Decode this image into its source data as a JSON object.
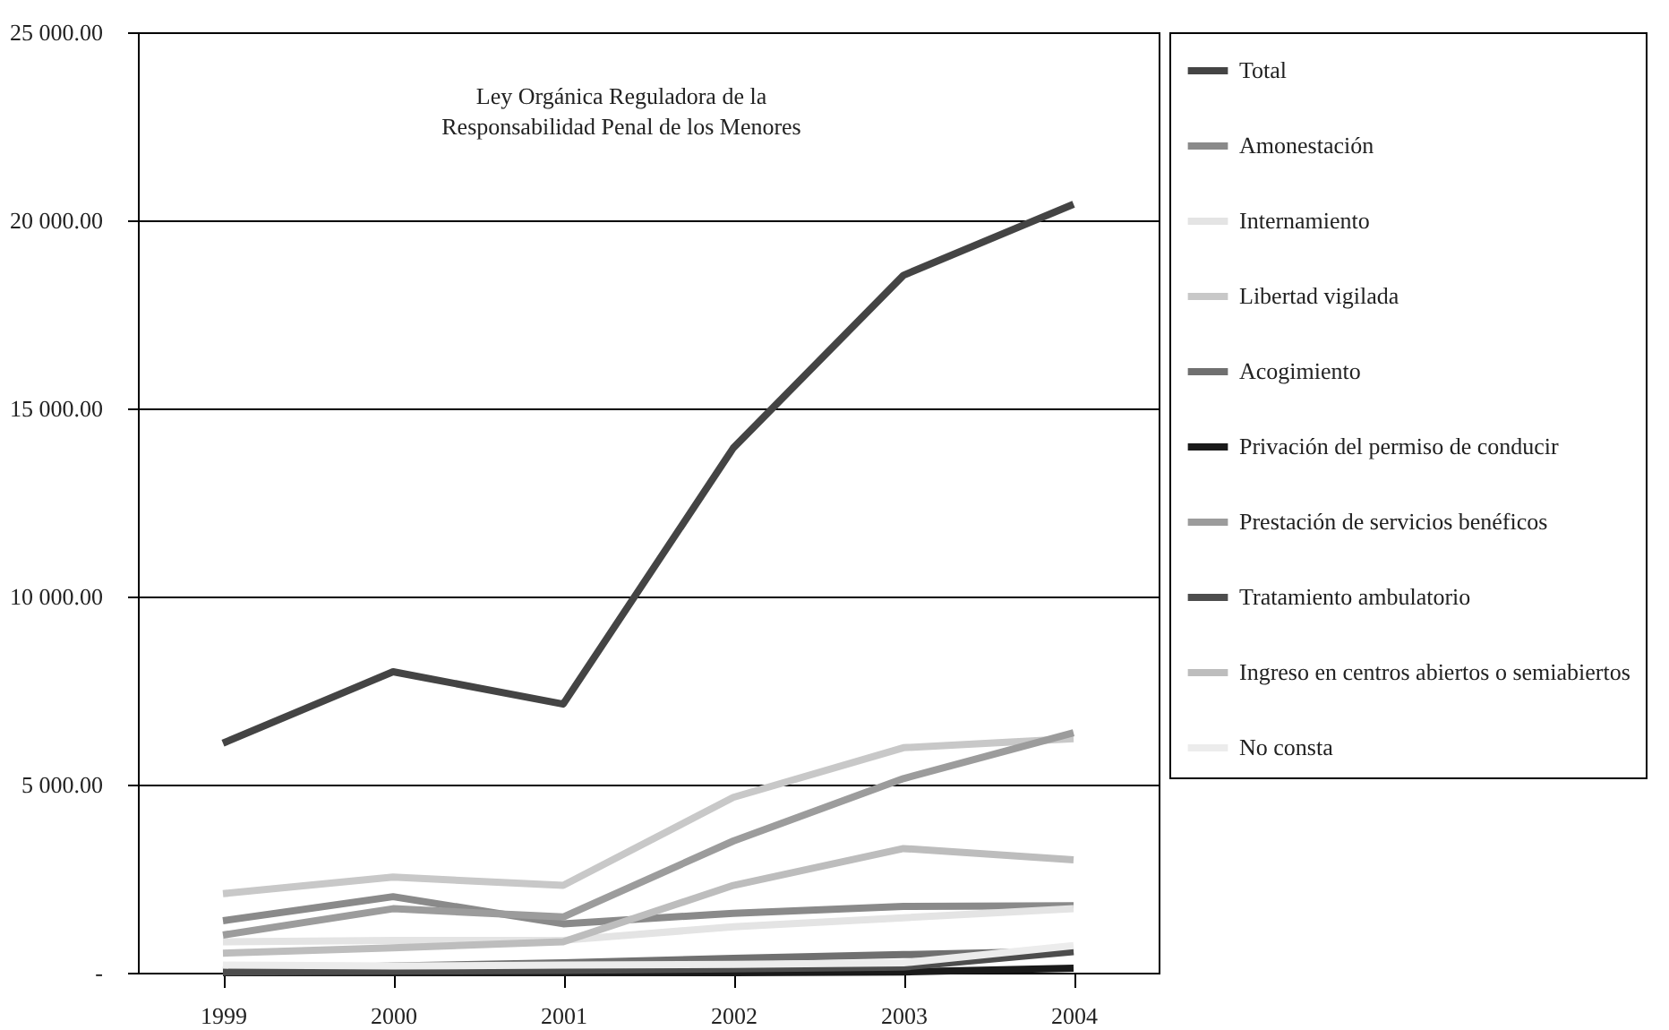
{
  "chart_data": {
    "type": "line",
    "title": "Ley Orgánica Reguladora de la Responsabilidad Penal de los Menores",
    "categories": [
      "1999",
      "2000",
      "2001",
      "2002",
      "2003",
      "2004"
    ],
    "series": [
      {
        "name": "Total",
        "color": "#444444",
        "values": [
          6100,
          8000,
          7140,
          13950,
          18540,
          20430
        ]
      },
      {
        "name": "Amonestación",
        "color": "#8a8a8a",
        "values": [
          1380,
          2020,
          1300,
          1580,
          1760,
          1780
        ]
      },
      {
        "name": "Internamiento",
        "color": "#e4e4e4",
        "values": [
          820,
          860,
          860,
          1220,
          1460,
          1700
        ]
      },
      {
        "name": "Libertad vigilada",
        "color": "#c8c8c8",
        "values": [
          2100,
          2540,
          2320,
          4660,
          5980,
          6220
        ]
      },
      {
        "name": "Acogimiento",
        "color": "#707070",
        "values": [
          60,
          180,
          260,
          380,
          480,
          580
        ]
      },
      {
        "name": "Privación del permiso de conducir",
        "color": "#1a1a1a",
        "values": [
          0,
          0,
          0,
          0,
          20,
          120
        ]
      },
      {
        "name": "Prestación de servicios benéficos",
        "color": "#9c9c9c",
        "values": [
          1000,
          1700,
          1480,
          3500,
          5160,
          6380
        ]
      },
      {
        "name": "Tratamiento ambulatorio",
        "color": "#4d4d4d",
        "values": [
          20,
          40,
          60,
          100,
          150,
          560
        ]
      },
      {
        "name": "Ingreso en centros abiertos o semiabiertos",
        "color": "#bdbdbd",
        "values": [
          520,
          660,
          820,
          2320,
          3300,
          3000
        ]
      },
      {
        "name": "No consta",
        "color": "#ececec",
        "values": [
          200,
          180,
          200,
          220,
          260,
          720
        ]
      }
    ],
    "ylim": [
      0,
      25000
    ],
    "yticks": [
      {
        "value": 0,
        "label": "-"
      },
      {
        "value": 5000,
        "label": "5 000.00"
      },
      {
        "value": 10000,
        "label": "10 000.00"
      },
      {
        "value": 15000,
        "label": "15 000.00"
      },
      {
        "value": 20000,
        "label": "20 000.00"
      },
      {
        "value": 25000,
        "label": "25 000.00"
      }
    ],
    "grid": "y",
    "legend": "right",
    "line_style": "solid"
  }
}
